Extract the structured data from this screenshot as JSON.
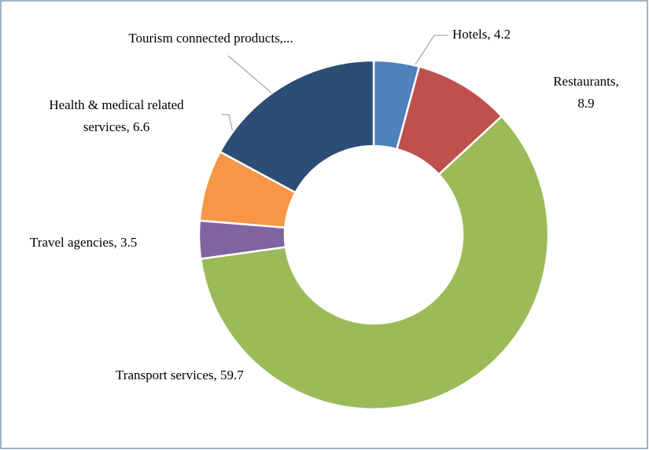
{
  "chart_data": {
    "type": "donut",
    "values": [
      4.2,
      8.9,
      59.7,
      3.5,
      6.6,
      17.1
    ],
    "value_labels": [
      "Hotels, 4.2",
      "Restaurants,\n8.9",
      "Transport services, 59.7",
      "Travel agencies, 3.5",
      "Health & medical related\nservices, 6.6",
      "Tourism connected products,..."
    ],
    "colors": [
      "#4f81bd",
      "#c0504d",
      "#9bbb59",
      "#8064a2",
      "#f79646",
      "#2c4d75"
    ]
  }
}
